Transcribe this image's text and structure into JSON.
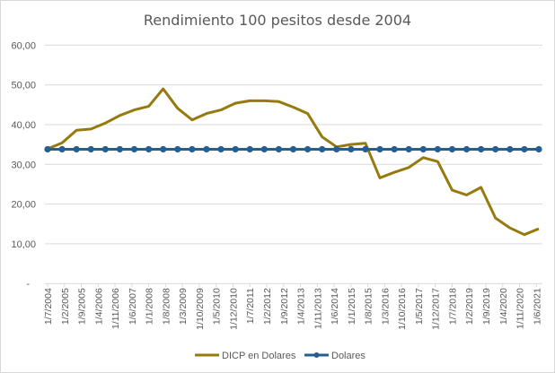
{
  "chart_data": {
    "type": "line",
    "title": "Rendimiento 100 pesitos desde 2004",
    "xlabel": "",
    "ylabel": "",
    "ylim": [
      0,
      60
    ],
    "y_ticks": [
      "-",
      "10,00",
      "20,00",
      "30,00",
      "40,00",
      "50,00",
      "60,00"
    ],
    "y_tick_values": [
      0,
      10,
      20,
      30,
      40,
      50,
      60
    ],
    "x_tick_labels": [
      "1/7/2004",
      "1/2/2005",
      "1/9/2005",
      "1/4/2006",
      "1/11/2006",
      "1/6/2007",
      "1/1/2008",
      "1/8/2008",
      "1/3/2009",
      "1/10/2009",
      "1/5/2010",
      "1/12/2010",
      "1/7/2011",
      "1/2/2012",
      "1/9/2012",
      "1/4/2013",
      "1/11/2013",
      "1/6/2014",
      "1/1/2015",
      "1/8/2015",
      "1/3/2016",
      "1/10/2016",
      "1/5/2017",
      "1/12/2017",
      "1/7/2018",
      "1/2/2019",
      "1/9/2019",
      "1/4/2020",
      "1/11/2020",
      "1/6/2021"
    ],
    "xlim": [
      "1/7/2004",
      "1/7/2021"
    ],
    "x": [
      "1/7/2004",
      "1/1/2005",
      "1/7/2005",
      "1/1/2006",
      "1/7/2006",
      "1/1/2007",
      "1/7/2007",
      "1/1/2008",
      "1/7/2008",
      "1/1/2009",
      "1/7/2009",
      "1/1/2010",
      "1/7/2010",
      "1/1/2011",
      "1/7/2011",
      "1/1/2012",
      "1/7/2012",
      "1/1/2013",
      "1/7/2013",
      "1/1/2014",
      "1/7/2014",
      "1/1/2015",
      "1/7/2015",
      "1/1/2016",
      "1/7/2016",
      "1/1/2017",
      "1/7/2017",
      "1/1/2018",
      "1/7/2018",
      "1/1/2019",
      "1/7/2019",
      "1/1/2020",
      "1/7/2020",
      "1/1/2021",
      "1/7/2021"
    ],
    "grid": true,
    "legend_position": "bottom",
    "series": [
      {
        "name": "DICP en Dolares",
        "color": "#967A0D",
        "marker": false,
        "values": [
          33.9,
          35.4,
          38.6,
          38.9,
          40.4,
          42.3,
          43.7,
          44.6,
          49.0,
          44.1,
          41.2,
          42.8,
          43.7,
          45.4,
          46.0,
          46.0,
          45.8,
          44.4,
          42.8,
          36.9,
          34.4,
          35.0,
          35.3,
          26.6,
          28.0,
          29.2,
          31.7,
          30.7,
          23.5,
          22.3,
          24.2,
          16.5,
          14.0,
          12.3,
          13.8
        ]
      },
      {
        "name": "Dolares",
        "color": "#255E91",
        "marker": true,
        "values": [
          33.8,
          33.8,
          33.8,
          33.8,
          33.8,
          33.8,
          33.8,
          33.8,
          33.8,
          33.8,
          33.8,
          33.8,
          33.8,
          33.8,
          33.8,
          33.8,
          33.8,
          33.8,
          33.8,
          33.8,
          33.8,
          33.8,
          33.8,
          33.8,
          33.8,
          33.8,
          33.8,
          33.8,
          33.8,
          33.8,
          33.8,
          33.8,
          33.8,
          33.8,
          33.8
        ]
      }
    ]
  }
}
